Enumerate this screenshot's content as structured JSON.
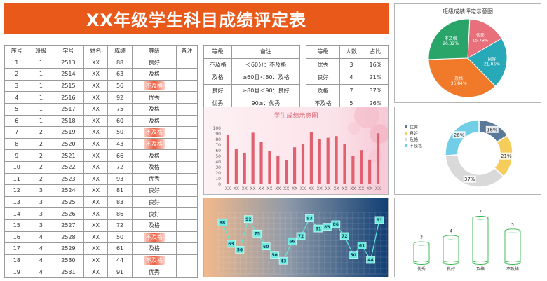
{
  "header": {
    "title": "XX年级学生科目成绩评定表"
  },
  "main_table": {
    "headers": [
      "序号",
      "班级",
      "学号",
      "姓名",
      "成绩",
      "等级",
      "备注"
    ],
    "rows": [
      [
        "1",
        "1",
        "2513",
        "XX",
        "88",
        "良好",
        ""
      ],
      [
        "2",
        "1",
        "2514",
        "XX",
        "63",
        "及格",
        ""
      ],
      [
        "3",
        "1",
        "2515",
        "XX",
        "56",
        "不及格",
        ""
      ],
      [
        "4",
        "1",
        "2516",
        "XX",
        "92",
        "优秀",
        ""
      ],
      [
        "5",
        "1",
        "2517",
        "XX",
        "75",
        "及格",
        ""
      ],
      [
        "6",
        "1",
        "2518",
        "XX",
        "60",
        "及格",
        ""
      ],
      [
        "7",
        "2",
        "2519",
        "XX",
        "50",
        "不及格",
        ""
      ],
      [
        "8",
        "2",
        "2520",
        "XX",
        "43",
        "不及格",
        ""
      ],
      [
        "9",
        "2",
        "2521",
        "XX",
        "66",
        "及格",
        ""
      ],
      [
        "10",
        "2",
        "2522",
        "XX",
        "72",
        "及格",
        ""
      ],
      [
        "11",
        "2",
        "2523",
        "XX",
        "93",
        "优秀",
        ""
      ],
      [
        "12",
        "3",
        "2524",
        "XX",
        "81",
        "良好",
        ""
      ],
      [
        "13",
        "3",
        "2525",
        "XX",
        "83",
        "良好",
        ""
      ],
      [
        "14",
        "3",
        "2526",
        "XX",
        "86",
        "良好",
        ""
      ],
      [
        "15",
        "3",
        "2527",
        "XX",
        "72",
        "及格",
        ""
      ],
      [
        "16",
        "4",
        "2528",
        "XX",
        "50",
        "不及格",
        ""
      ],
      [
        "17",
        "4",
        "2529",
        "XX",
        "61",
        "及格",
        ""
      ],
      [
        "18",
        "4",
        "2530",
        "XX",
        "44",
        "不及格",
        ""
      ],
      [
        "19",
        "4",
        "2531",
        "XX",
        "91",
        "优秀",
        ""
      ]
    ]
  },
  "grade_table": {
    "headers": [
      "等级",
      "备注"
    ],
    "rows": [
      [
        "不及格",
        "＜60分：不及格"
      ],
      [
        "及格",
        "≥60且＜80：及格"
      ],
      [
        "良好",
        "≥80且＜90：良好"
      ],
      [
        "优秀",
        "90≥：优秀"
      ]
    ]
  },
  "stats_table": {
    "headers": [
      "等级",
      "人数",
      "占比"
    ],
    "rows": [
      [
        "优秀",
        "3",
        "16%"
      ],
      [
        "良好",
        "4",
        "21%"
      ],
      [
        "及格",
        "7",
        "37%"
      ],
      [
        "不及格",
        "5",
        "26%"
      ]
    ]
  },
  "colors": {
    "title_bg": "#e8591a",
    "excellent": "#e8707a",
    "good": "#28a9b8",
    "pass": "#f07a2a",
    "fail": "#2aa56a",
    "bar": "#e0606e",
    "line": "#5fe8d8",
    "donut_fail": "#72cde6",
    "donut_good": "#f6cc5a",
    "donut_pass": "#d9d9d9",
    "donut_exc": "#5a7898",
    "cyl": "#33b84a"
  },
  "chart_data": [
    {
      "type": "pie",
      "title": "班级成绩评定示意图",
      "labels": [
        "优秀",
        "良好",
        "及格",
        "不及格"
      ],
      "values": [
        15.79,
        21.05,
        36.84,
        26.32
      ],
      "data_labels": [
        "15.79%",
        "21.05%",
        "36.84%",
        "26.32%"
      ]
    },
    {
      "type": "bar",
      "title": "学生成绩示意图",
      "categories": [
        "XX",
        "XX",
        "XX",
        "XX",
        "XX",
        "XX",
        "XX",
        "XX",
        "XX",
        "XX",
        "XX",
        "XX",
        "XX",
        "XX",
        "XX",
        "XX",
        "XX",
        "XX",
        "XX"
      ],
      "values": [
        88,
        63,
        56,
        92,
        75,
        60,
        50,
        43,
        66,
        72,
        93,
        81,
        83,
        86,
        72,
        50,
        61,
        44,
        91
      ],
      "ylim": [
        0,
        100
      ],
      "yticks": [
        "0",
        "10",
        "20",
        "30",
        "40",
        "50",
        "60",
        "70",
        "80",
        "90",
        "100"
      ]
    },
    {
      "type": "line",
      "values": [
        88,
        63,
        56,
        92,
        75,
        60,
        50,
        43,
        66,
        72,
        93,
        81,
        83,
        86,
        72,
        50,
        61,
        44,
        91
      ],
      "data_labels": [
        "88",
        "63",
        "56",
        "92",
        "75",
        "60",
        "50",
        "43",
        "66",
        "72",
        "93",
        "81",
        "83",
        "86",
        "72",
        "50",
        "61",
        "44",
        "91"
      ]
    },
    {
      "type": "pie",
      "labels": [
        "优秀",
        "良好",
        "及格",
        "不及格"
      ],
      "values": [
        16,
        21,
        37,
        26
      ],
      "data_labels": [
        "16%",
        "21%",
        "37%",
        "26%"
      ]
    },
    {
      "type": "bar",
      "categories": [
        "优秀",
        "良好",
        "及格",
        "不及格"
      ],
      "values": [
        3,
        4,
        7,
        5
      ],
      "data_labels": [
        "3",
        "4",
        "7",
        "5"
      ]
    }
  ]
}
